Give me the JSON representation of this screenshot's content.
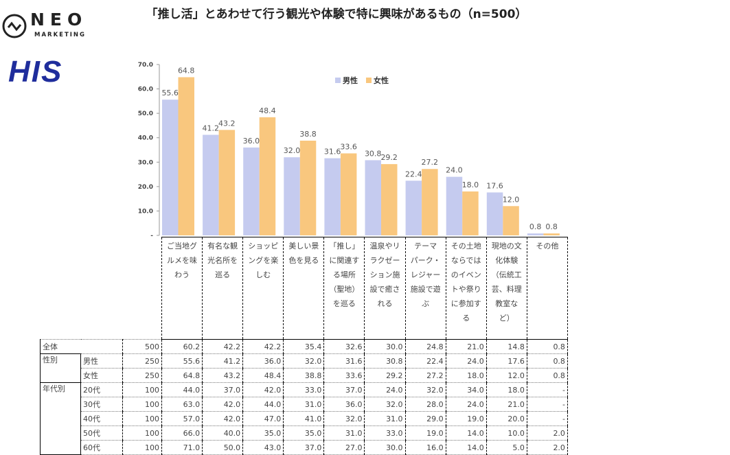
{
  "title": "「推し活」とあわせて行う観光や体験で特に興味があるもの（n=500）",
  "logos": {
    "neo": "NEO",
    "neo_sub": "MARKETING",
    "his": "HIS"
  },
  "colors": {
    "male": "#c5cbef",
    "female": "#f9c77e"
  },
  "chart_data": {
    "type": "bar",
    "title": "「推し活」とあわせて行う観光や体験で特に興味があるもの（n=500）",
    "categories": [
      "ご当地グルメを味わう",
      "有名な観光名所を巡る",
      "ショッピングを楽しむ",
      "美しい景色を見る",
      "「推し」に関連する場所（聖地）を巡る",
      "温泉やリラクゼーション施設で癒される",
      "テーマパーク・レジャー施設で遊ぶ",
      "その土地ならではのイベントや祭りに参加する",
      "現地の文化体験（伝統工芸、料理教室など）",
      "その他"
    ],
    "series": [
      {
        "name": "男性",
        "values": [
          55.6,
          41.2,
          36.0,
          32.0,
          31.6,
          30.8,
          22.4,
          24.0,
          17.6,
          0.8
        ]
      },
      {
        "name": "女性",
        "values": [
          64.8,
          43.2,
          48.4,
          38.8,
          33.6,
          29.2,
          27.2,
          18.0,
          12.0,
          0.8
        ]
      }
    ],
    "ylim": [
      0,
      70
    ],
    "yticks": [
      "-",
      "10.0",
      "20.0",
      "30.0",
      "40.0",
      "50.0",
      "60.0",
      "70.0"
    ],
    "legend": "top-center",
    "grid": false
  },
  "table": {
    "n_label": "n",
    "headers": [
      [
        "ご当地グ",
        "ルメを味",
        "わう"
      ],
      [
        "有名な観",
        "光名所を",
        "巡る"
      ],
      [
        "ショッピ",
        "ングを楽",
        "しむ"
      ],
      [
        "美しい景",
        "色を見る"
      ],
      [
        "「推し」",
        "に関連す",
        "る場所",
        "（聖地）",
        "を巡る"
      ],
      [
        "温泉やリ",
        "ラクゼー",
        "ション施",
        "設で癒さ",
        "れる"
      ],
      [
        "テーマ",
        "パーク・",
        "レジャー",
        "施設で遊",
        "ぶ"
      ],
      [
        "その土地",
        "ならでは",
        "のイベン",
        "トや祭り",
        "に参加す",
        "る"
      ],
      [
        "現地の文",
        "化体験",
        "（伝統工",
        "芸、料理",
        "教室な",
        "ど）"
      ],
      [
        "その他"
      ]
    ],
    "rows": [
      {
        "group": "全体",
        "sub": "",
        "n": "500",
        "values": [
          "60.2",
          "42.2",
          "42.2",
          "35.4",
          "32.6",
          "30.0",
          "24.8",
          "21.0",
          "14.8",
          "0.8"
        ]
      },
      {
        "group": "性別",
        "sub": "男性",
        "n": "250",
        "values": [
          "55.6",
          "41.2",
          "36.0",
          "32.0",
          "31.6",
          "30.8",
          "22.4",
          "24.0",
          "17.6",
          "0.8"
        ]
      },
      {
        "group": "",
        "sub": "女性",
        "n": "250",
        "values": [
          "64.8",
          "43.2",
          "48.4",
          "38.8",
          "33.6",
          "29.2",
          "27.2",
          "18.0",
          "12.0",
          "0.8"
        ]
      },
      {
        "group": "年代別",
        "sub": "20代",
        "n": "100",
        "values": [
          "44.0",
          "37.0",
          "42.0",
          "33.0",
          "37.0",
          "24.0",
          "32.0",
          "34.0",
          "18.0",
          "-"
        ]
      },
      {
        "group": "",
        "sub": "30代",
        "n": "100",
        "values": [
          "63.0",
          "42.0",
          "44.0",
          "31.0",
          "36.0",
          "32.0",
          "28.0",
          "24.0",
          "21.0",
          "-"
        ]
      },
      {
        "group": "",
        "sub": "40代",
        "n": "100",
        "values": [
          "57.0",
          "42.0",
          "47.0",
          "41.0",
          "32.0",
          "31.0",
          "29.0",
          "19.0",
          "20.0",
          "-"
        ]
      },
      {
        "group": "",
        "sub": "50代",
        "n": "100",
        "values": [
          "66.0",
          "40.0",
          "35.0",
          "35.0",
          "31.0",
          "33.0",
          "19.0",
          "14.0",
          "10.0",
          "2.0"
        ]
      },
      {
        "group": "",
        "sub": "60代",
        "n": "100",
        "values": [
          "71.0",
          "50.0",
          "43.0",
          "37.0",
          "27.0",
          "30.0",
          "16.0",
          "14.0",
          "5.0",
          "2.0"
        ]
      }
    ]
  }
}
